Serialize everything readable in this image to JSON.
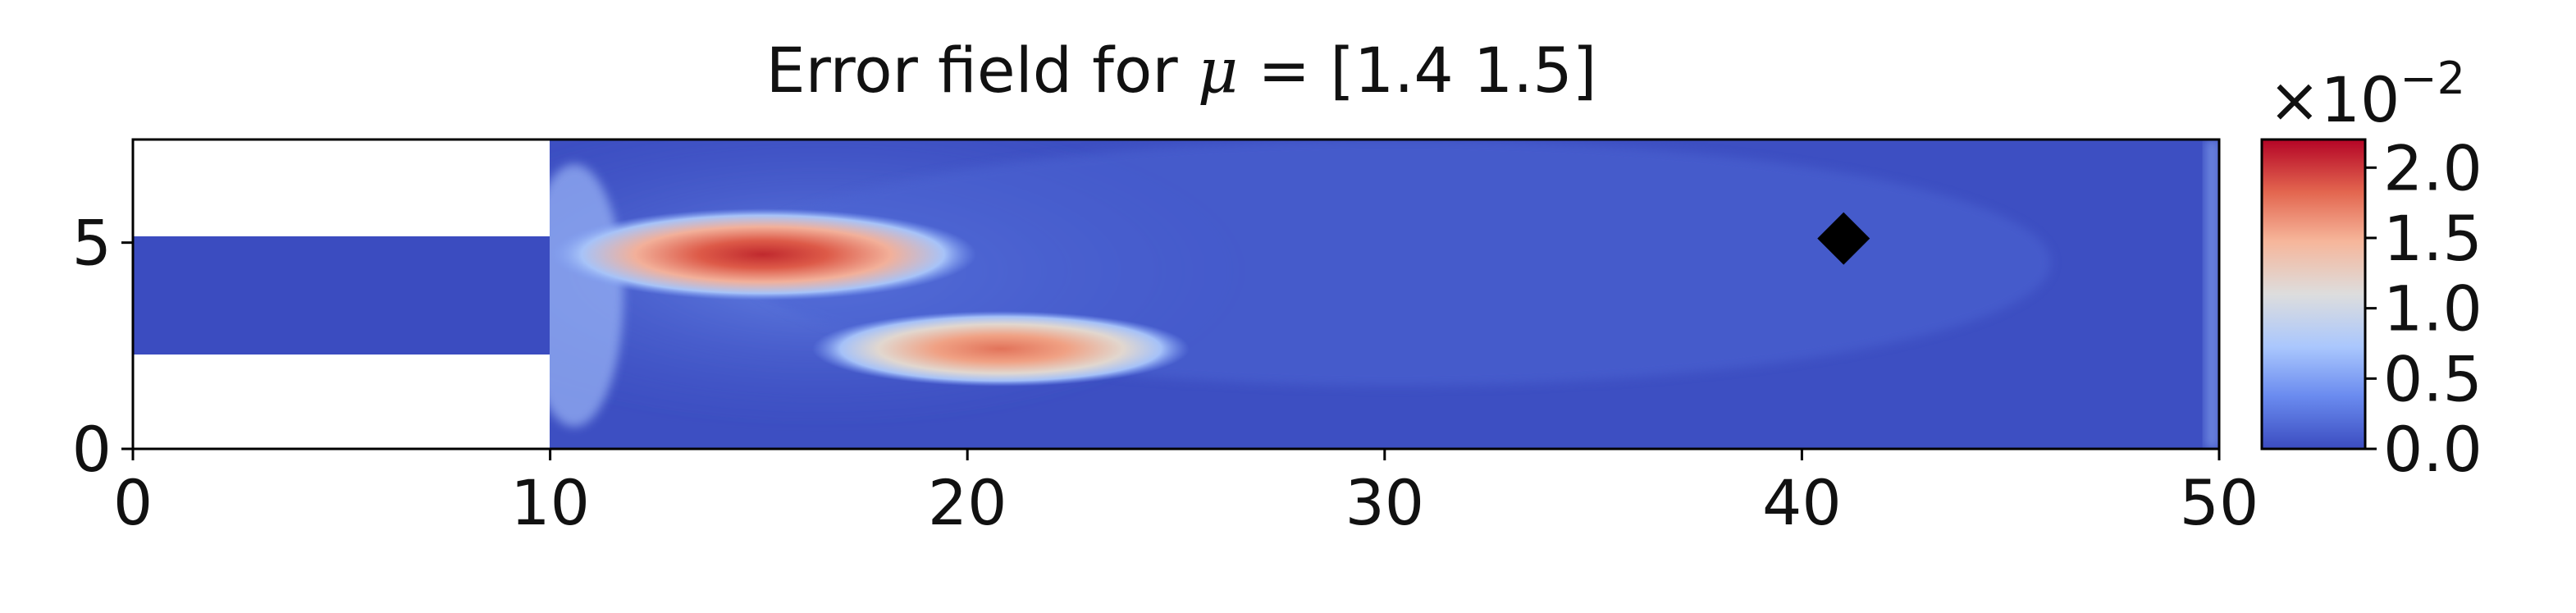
{
  "chart_data": {
    "type": "heatmap",
    "title": "Error field for μ = [1.4 1.5]",
    "title_main": "Error field for ",
    "title_symbol": "μ",
    "title_rest": " = [1.4 1.5]",
    "xlim": [
      0,
      50
    ],
    "ylim": [
      0,
      7.5
    ],
    "x_ticks": [
      0,
      10,
      20,
      30,
      40,
      50
    ],
    "x_tick_labels": [
      "0",
      "10",
      "20",
      "30",
      "40",
      "50"
    ],
    "y_ticks": [
      0,
      5
    ],
    "y_tick_labels": [
      "0",
      "5"
    ],
    "domain": {
      "inlet_channel": {
        "x": [
          0,
          10
        ],
        "y": [
          2.3,
          5.2
        ]
      },
      "chamber": {
        "x": [
          10,
          50
        ],
        "y": [
          0,
          7.5
        ]
      }
    },
    "marker": {
      "x": 41,
      "y": 5.1,
      "shape": "diamond",
      "color": "#000000"
    },
    "hotspots": [
      {
        "x": 15.5,
        "y": 4.7,
        "value": 2.2
      },
      {
        "x": 21.0,
        "y": 2.5,
        "value": 1.7
      }
    ],
    "background_value": 0.05,
    "colorbar": {
      "min": 0.0,
      "max": 2.2,
      "ticks": [
        0.0,
        0.5,
        1.0,
        1.5,
        2.0
      ],
      "tick_labels": [
        "0.0",
        "0.5",
        "1.0",
        "1.5",
        "2.0"
      ],
      "multiplier_base": "×10",
      "multiplier_exp": "−2",
      "colormap": "coolwarm",
      "colors": [
        "#3b4cc0",
        "#6a8bef",
        "#aac7fd",
        "#dddddd",
        "#f6b69b",
        "#e3664f",
        "#b40426"
      ]
    }
  }
}
